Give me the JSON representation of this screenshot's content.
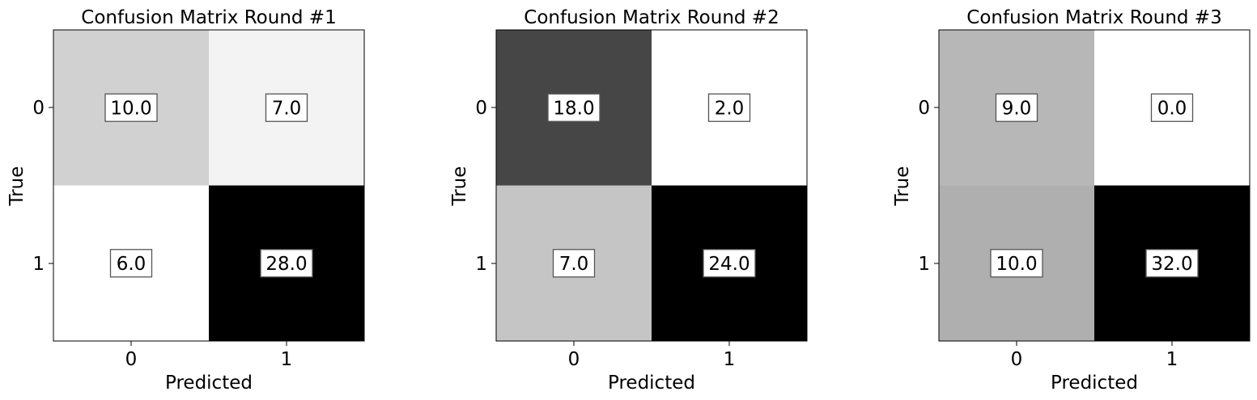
{
  "chart_data": [
    {
      "type": "heatmap",
      "title": "Confusion Matrix Round #1",
      "xlabel": "Predicted",
      "ylabel": "True",
      "x_categories": [
        "0",
        "1"
      ],
      "y_categories": [
        "0",
        "1"
      ],
      "values": [
        [
          10.0,
          7.0
        ],
        [
          6.0,
          28.0
        ]
      ],
      "value_labels": [
        [
          "10.0",
          "7.0"
        ],
        [
          "6.0",
          "28.0"
        ]
      ],
      "colormap": "grayscale (white = low, black = high)"
    },
    {
      "type": "heatmap",
      "title": "Confusion Matrix Round #2",
      "xlabel": "Predicted",
      "ylabel": "True",
      "x_categories": [
        "0",
        "1"
      ],
      "y_categories": [
        "0",
        "1"
      ],
      "values": [
        [
          18.0,
          2.0
        ],
        [
          7.0,
          24.0
        ]
      ],
      "value_labels": [
        [
          "18.0",
          "2.0"
        ],
        [
          "7.0",
          "24.0"
        ]
      ],
      "colormap": "grayscale (white = low, black = high)"
    },
    {
      "type": "heatmap",
      "title": "Confusion Matrix Round #3",
      "xlabel": "Predicted",
      "ylabel": "True",
      "x_categories": [
        "0",
        "1"
      ],
      "y_categories": [
        "0",
        "1"
      ],
      "values": [
        [
          9.0,
          0.0
        ],
        [
          10.0,
          32.0
        ]
      ],
      "value_labels": [
        [
          "9.0",
          "0.0"
        ],
        [
          "10.0",
          "32.0"
        ]
      ],
      "colormap": "grayscale (white = low, black = high)"
    }
  ]
}
